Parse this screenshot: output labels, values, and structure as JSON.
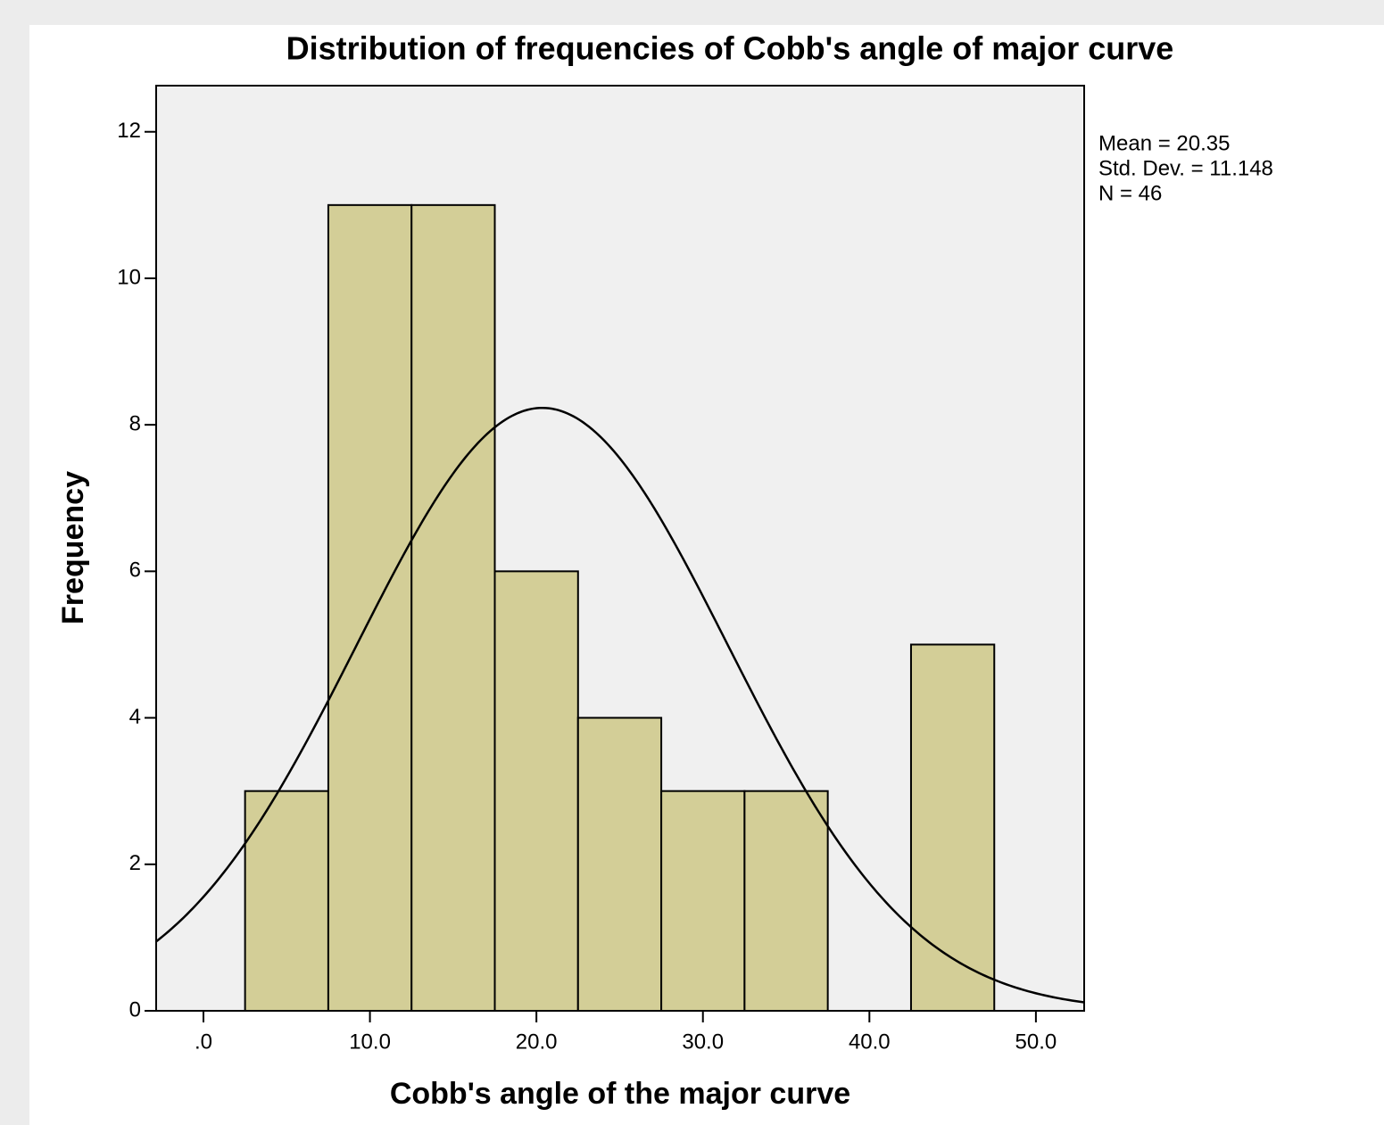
{
  "chart_data": {
    "type": "histogram",
    "title": "Distribution of frequencies of Cobb's angle of major curve",
    "x_label": "Cobb's angle of the major curve",
    "y_label": "Frequency",
    "bins": [
      2.5,
      7.5,
      12.5,
      17.5,
      22.5,
      27.5,
      32.5,
      37.5,
      42.5,
      47.5
    ],
    "counts": [
      3,
      11,
      11,
      6,
      4,
      3,
      3,
      0,
      5
    ],
    "color": "#d3ce97",
    "xlim": [
      -2.84,
      52.9
    ],
    "ylim": [
      0,
      12.63
    ],
    "xticks": [
      {
        "value": 0,
        "label": ".0"
      },
      {
        "value": 10,
        "label": "10.0"
      },
      {
        "value": 20,
        "label": "20.0"
      },
      {
        "value": 30,
        "label": "30.0"
      },
      {
        "value": 40,
        "label": "40.0"
      },
      {
        "value": 50,
        "label": "50.0"
      }
    ],
    "yticks": [
      0,
      2,
      4,
      6,
      8,
      10,
      12
    ],
    "normal_curve": true,
    "stats": [
      {
        "value": 20.35,
        "label": "Mean = 20.35"
      },
      {
        "value": 11.148,
        "label": "Std. Dev. = 11.148"
      },
      {
        "value": 46,
        "label": "N = 46"
      }
    ]
  }
}
